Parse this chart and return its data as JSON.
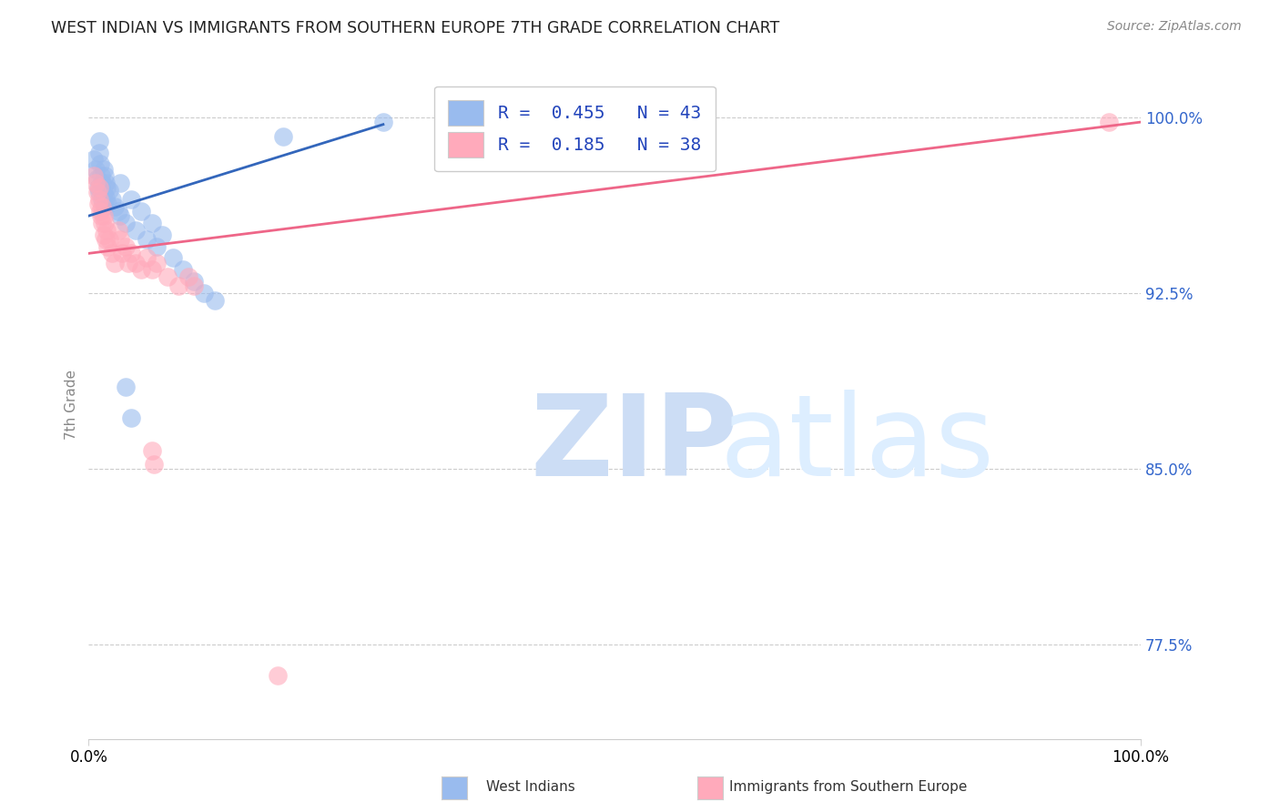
{
  "title": "WEST INDIAN VS IMMIGRANTS FROM SOUTHERN EUROPE 7TH GRADE CORRELATION CHART",
  "source": "Source: ZipAtlas.com",
  "ylabel": "7th Grade",
  "y_ticks": [
    0.775,
    0.85,
    0.925,
    1.0
  ],
  "y_tick_labels": [
    "77.5%",
    "85.0%",
    "92.5%",
    "100.0%"
  ],
  "x_range": [
    0.0,
    1.0
  ],
  "y_range": [
    0.735,
    1.02
  ],
  "legend_blue_label": "R =  0.455   N = 43",
  "legend_pink_label": "R =  0.185   N = 38",
  "legend_blue_sublabel": "West Indians",
  "legend_pink_sublabel": "Immigrants from Southern Europe",
  "blue_color": "#99BBEE",
  "pink_color": "#FFAABB",
  "blue_line_color": "#3366BB",
  "pink_line_color": "#EE6688",
  "blue_scatter": [
    [
      0.005,
      0.982
    ],
    [
      0.007,
      0.978
    ],
    [
      0.008,
      0.974
    ],
    [
      0.009,
      0.97
    ],
    [
      0.01,
      0.99
    ],
    [
      0.01,
      0.985
    ],
    [
      0.01,
      0.968
    ],
    [
      0.011,
      0.98
    ],
    [
      0.012,
      0.975
    ],
    [
      0.012,
      0.97
    ],
    [
      0.013,
      0.972
    ],
    [
      0.013,
      0.965
    ],
    [
      0.014,
      0.978
    ],
    [
      0.014,
      0.968
    ],
    [
      0.015,
      0.975
    ],
    [
      0.015,
      0.962
    ],
    [
      0.016,
      0.972
    ],
    [
      0.016,
      0.966
    ],
    [
      0.017,
      0.97
    ],
    [
      0.018,
      0.963
    ],
    [
      0.02,
      0.969
    ],
    [
      0.022,
      0.965
    ],
    [
      0.025,
      0.962
    ],
    [
      0.028,
      0.96
    ],
    [
      0.03,
      0.972
    ],
    [
      0.03,
      0.958
    ],
    [
      0.035,
      0.955
    ],
    [
      0.04,
      0.965
    ],
    [
      0.045,
      0.952
    ],
    [
      0.05,
      0.96
    ],
    [
      0.055,
      0.948
    ],
    [
      0.06,
      0.955
    ],
    [
      0.065,
      0.945
    ],
    [
      0.07,
      0.95
    ],
    [
      0.08,
      0.94
    ],
    [
      0.09,
      0.935
    ],
    [
      0.1,
      0.93
    ],
    [
      0.11,
      0.925
    ],
    [
      0.12,
      0.922
    ],
    [
      0.035,
      0.885
    ],
    [
      0.04,
      0.872
    ],
    [
      0.185,
      0.992
    ],
    [
      0.28,
      0.998
    ]
  ],
  "pink_scatter": [
    [
      0.005,
      0.975
    ],
    [
      0.007,
      0.972
    ],
    [
      0.008,
      0.968
    ],
    [
      0.009,
      0.963
    ],
    [
      0.01,
      0.97
    ],
    [
      0.01,
      0.965
    ],
    [
      0.011,
      0.96
    ],
    [
      0.012,
      0.958
    ],
    [
      0.013,
      0.962
    ],
    [
      0.013,
      0.955
    ],
    [
      0.014,
      0.958
    ],
    [
      0.014,
      0.95
    ],
    [
      0.015,
      0.955
    ],
    [
      0.016,
      0.948
    ],
    [
      0.017,
      0.952
    ],
    [
      0.018,
      0.945
    ],
    [
      0.02,
      0.948
    ],
    [
      0.022,
      0.942
    ],
    [
      0.025,
      0.938
    ],
    [
      0.028,
      0.952
    ],
    [
      0.03,
      0.948
    ],
    [
      0.032,
      0.942
    ],
    [
      0.035,
      0.945
    ],
    [
      0.038,
      0.938
    ],
    [
      0.04,
      0.942
    ],
    [
      0.045,
      0.938
    ],
    [
      0.05,
      0.935
    ],
    [
      0.055,
      0.94
    ],
    [
      0.06,
      0.935
    ],
    [
      0.065,
      0.938
    ],
    [
      0.075,
      0.932
    ],
    [
      0.085,
      0.928
    ],
    [
      0.095,
      0.932
    ],
    [
      0.1,
      0.928
    ],
    [
      0.06,
      0.858
    ],
    [
      0.062,
      0.852
    ],
    [
      0.18,
      0.762
    ],
    [
      0.97,
      0.998
    ]
  ],
  "blue_trend_x": [
    0.0,
    0.28
  ],
  "blue_trend_y": [
    0.958,
    0.997
  ],
  "pink_trend_x": [
    0.0,
    1.0
  ],
  "pink_trend_y": [
    0.942,
    0.998
  ]
}
